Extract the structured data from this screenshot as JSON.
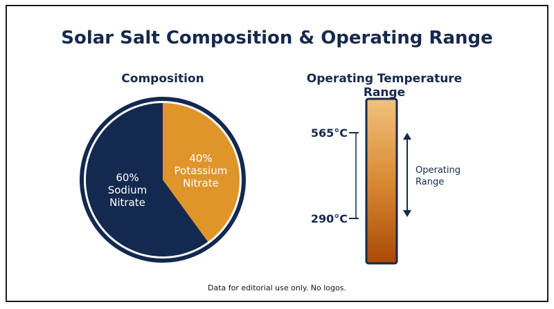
{
  "title": "Solar Salt Composition & Operating Range",
  "footnote": "Data for editorial use only. No logos.",
  "colors": {
    "navy": "#13294f",
    "orange": "#e0952a",
    "bar_top": "#f1c27e",
    "bar_bottom": "#a94a06"
  },
  "chart_data": [
    {
      "type": "pie",
      "title": "Composition",
      "slices": [
        {
          "label_value": "40%",
          "label_lines": [
            "Potassium",
            "Nitrate"
          ],
          "value": 40,
          "color": "#e0952a"
        },
        {
          "label_value": "60%",
          "label_lines": [
            "Sodium",
            "Nitrate"
          ],
          "value": 60,
          "color": "#13294f"
        }
      ]
    },
    {
      "type": "range",
      "title": "Operating Temperature Range",
      "min": 290,
      "max": 565,
      "tick_labels": {
        "max": "565°C",
        "min": "290°C"
      },
      "range_label_lines": [
        "Operating",
        "Range"
      ]
    }
  ]
}
